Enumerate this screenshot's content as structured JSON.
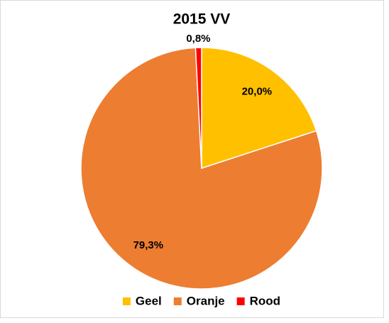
{
  "chart_data": {
    "type": "pie",
    "title": "2015 VV",
    "categories": [
      "Geel",
      "Oranje",
      "Rood"
    ],
    "values": [
      20.0,
      79.3,
      0.8
    ],
    "value_labels": [
      "20,0%",
      "79,3%",
      "0,8%"
    ],
    "colors": [
      "#FFC000",
      "#ED7D31",
      "#FF0000"
    ],
    "legend": "bottom"
  }
}
